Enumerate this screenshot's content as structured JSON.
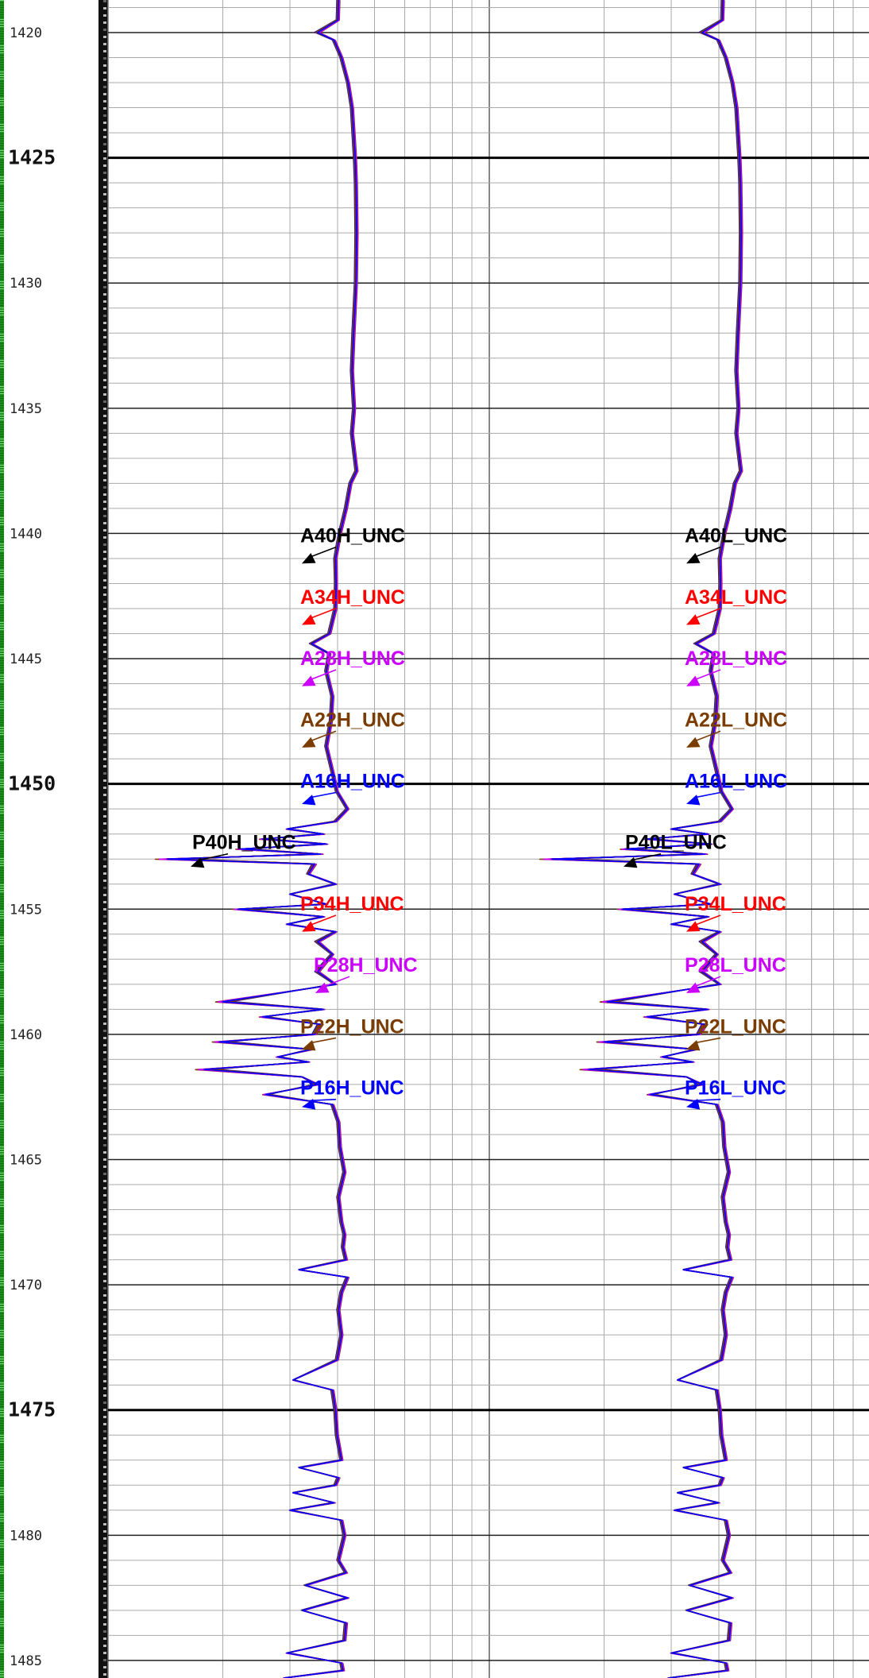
{
  "chart_data": {
    "type": "line",
    "depth_range": [
      1418.7,
      1485.7
    ],
    "depth_ticks": {
      "minor": [
        1420,
        1430,
        1435,
        1440,
        1445,
        1455,
        1460,
        1465,
        1470,
        1480,
        1485
      ],
      "major": [
        1425,
        1450,
        1475
      ]
    },
    "tracks": [
      {
        "id": "track-high",
        "series_names": [
          "A40H_UNC",
          "A34H_UNC",
          "A28H_UNC",
          "A22H_UNC",
          "A16H_UNC",
          "P40H_UNC",
          "P34H_UNC",
          "P28H_UNC",
          "P22H_UNC",
          "P16H_UNC"
        ]
      },
      {
        "id": "track-low",
        "series_names": [
          "A40L_UNC",
          "A34L_UNC",
          "A28L_UNC",
          "A22L_UNC",
          "A16L_UNC",
          "P40L_UNC",
          "P34L_UNC",
          "P28L_UNC",
          "P22L_UNC",
          "P16L_UNC"
        ]
      }
    ],
    "series_colors": [
      "#000000",
      "#ff0000",
      "#cc00ff",
      "#7a3c00",
      "#0000ff",
      "#000000",
      "#ff0000",
      "#cc00ff",
      "#7a3c00",
      "#0000ff"
    ],
    "label_depths": [
      1440.1,
      1442.55,
      1445.0,
      1447.45,
      1449.9,
      1452.35,
      1454.8,
      1457.25,
      1459.7,
      1462.15
    ],
    "arrow_tip_depths": [
      1441.2,
      1443.65,
      1446.1,
      1448.55,
      1450.8,
      1453.3,
      1455.9,
      1458.35,
      1460.6,
      1462.9
    ],
    "curve_profile": [
      [
        1418.7,
        1.0
      ],
      [
        1419.5,
        0.98
      ],
      [
        1420.0,
        0.3
      ],
      [
        1420.3,
        0.85
      ],
      [
        1421.0,
        1.1
      ],
      [
        1422.0,
        1.32
      ],
      [
        1423.0,
        1.45
      ],
      [
        1424.0,
        1.5
      ],
      [
        1425.0,
        1.55
      ],
      [
        1426.0,
        1.58
      ],
      [
        1428.0,
        1.6
      ],
      [
        1430.0,
        1.58
      ],
      [
        1432.0,
        1.5
      ],
      [
        1433.5,
        1.45
      ],
      [
        1435.0,
        1.52
      ],
      [
        1436.0,
        1.45
      ],
      [
        1437.5,
        1.6
      ],
      [
        1438.0,
        1.4
      ],
      [
        1439.0,
        1.25
      ],
      [
        1440.0,
        1.05
      ],
      [
        1441.0,
        0.9
      ],
      [
        1442.0,
        0.92
      ],
      [
        1443.0,
        0.9
      ],
      [
        1444.0,
        0.7
      ],
      [
        1444.4,
        0.1
      ],
      [
        1444.8,
        0.7
      ],
      [
        1445.5,
        0.6
      ],
      [
        1446.5,
        0.8
      ],
      [
        1447.5,
        0.75
      ],
      [
        1448.5,
        0.6
      ],
      [
        1449.5,
        0.8
      ],
      [
        1450.3,
        0.95
      ],
      [
        1451.0,
        1.3
      ],
      [
        1451.5,
        0.9
      ],
      [
        1451.8,
        -0.7
      ],
      [
        1452.0,
        0.5
      ],
      [
        1452.2,
        -1.5
      ],
      [
        1452.4,
        0.6
      ],
      [
        1452.6,
        -2.2
      ],
      [
        1452.8,
        0.4
      ],
      [
        1453.0,
        -4.6
      ],
      [
        1453.2,
        0.2
      ],
      [
        1453.6,
        0.0
      ],
      [
        1454.0,
        0.9
      ],
      [
        1454.4,
        -0.6
      ],
      [
        1454.8,
        0.6
      ],
      [
        1455.0,
        -2.3
      ],
      [
        1455.3,
        0.5
      ],
      [
        1455.6,
        -0.7
      ],
      [
        1455.9,
        0.9
      ],
      [
        1456.3,
        0.3
      ],
      [
        1456.8,
        0.8
      ],
      [
        1457.5,
        0.3
      ],
      [
        1458.0,
        0.9
      ],
      [
        1458.7,
        -2.8
      ],
      [
        1459.0,
        0.5
      ],
      [
        1459.3,
        -1.5
      ],
      [
        1459.6,
        0.4
      ],
      [
        1460.0,
        0.2
      ],
      [
        1460.3,
        -2.9
      ],
      [
        1460.6,
        0.1
      ],
      [
        1460.9,
        -1.0
      ],
      [
        1461.1,
        0.0
      ],
      [
        1461.4,
        -3.4
      ],
      [
        1461.7,
        -0.2
      ],
      [
        1462.0,
        0.3
      ],
      [
        1462.4,
        -1.4
      ],
      [
        1462.8,
        0.8
      ],
      [
        1463.5,
        1.0
      ],
      [
        1464.5,
        1.05
      ],
      [
        1465.5,
        1.2
      ],
      [
        1466.5,
        1.0
      ],
      [
        1467.5,
        1.1
      ],
      [
        1468.0,
        1.2
      ],
      [
        1468.5,
        1.15
      ],
      [
        1469.0,
        1.25
      ],
      [
        1469.4,
        -0.3
      ],
      [
        1469.7,
        1.3
      ],
      [
        1470.3,
        1.1
      ],
      [
        1471.0,
        1.0
      ],
      [
        1472.0,
        1.1
      ],
      [
        1473.0,
        0.95
      ],
      [
        1473.8,
        -0.5
      ],
      [
        1474.2,
        0.8
      ],
      [
        1475.0,
        0.9
      ],
      [
        1476.0,
        0.95
      ],
      [
        1477.0,
        1.1
      ],
      [
        1477.3,
        -0.3
      ],
      [
        1477.7,
        1.0
      ],
      [
        1478.0,
        0.9
      ],
      [
        1478.3,
        -0.5
      ],
      [
        1478.7,
        0.85
      ],
      [
        1479.0,
        -0.6
      ],
      [
        1479.4,
        1.1
      ],
      [
        1480.0,
        1.2
      ],
      [
        1481.0,
        1.0
      ],
      [
        1481.5,
        1.25
      ],
      [
        1482.0,
        -0.1
      ],
      [
        1482.5,
        1.3
      ],
      [
        1483.0,
        -0.2
      ],
      [
        1483.5,
        1.25
      ],
      [
        1484.2,
        1.2
      ],
      [
        1484.7,
        -0.7
      ],
      [
        1485.1,
        1.1
      ],
      [
        1485.4,
        1.15
      ],
      [
        1485.7,
        -0.8
      ]
    ]
  }
}
